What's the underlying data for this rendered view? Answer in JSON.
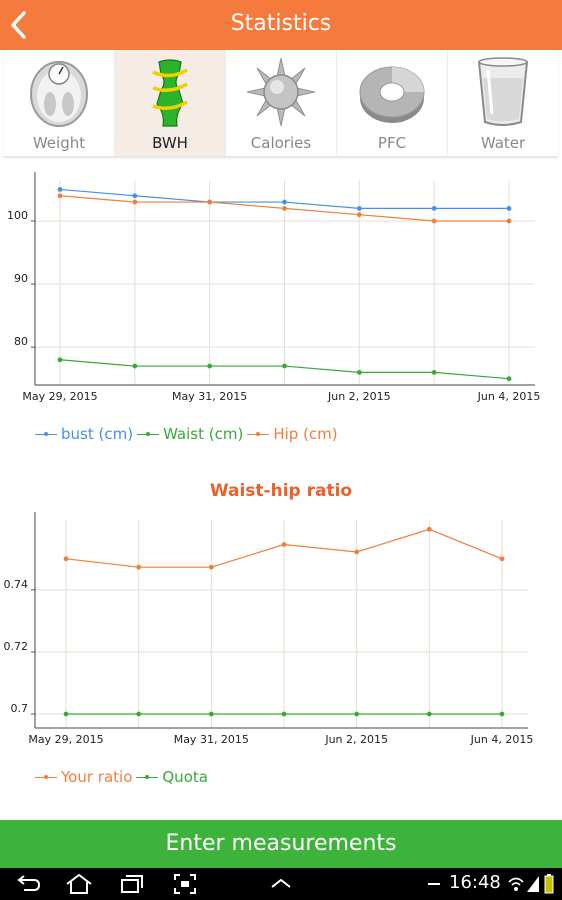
{
  "header": {
    "title": "Statistics"
  },
  "tabs": [
    {
      "label": "Weight",
      "icon": "scale-icon",
      "active": false
    },
    {
      "label": "BWH",
      "icon": "body-measure-icon",
      "active": true
    },
    {
      "label": "Calories",
      "icon": "sun-icon",
      "active": false
    },
    {
      "label": "PFC",
      "icon": "donut-icon",
      "active": false
    },
    {
      "label": "Water",
      "icon": "glass-icon",
      "active": false
    }
  ],
  "colors": {
    "accent": "#f47a3e",
    "bust": "#4a8fe0",
    "waist": "#3aa83a",
    "hip": "#f07f3c",
    "button": "#3eb33b"
  },
  "chart_data": [
    {
      "type": "line",
      "title": "",
      "x": [
        "May 29, 2015",
        "May 30, 2015",
        "May 31, 2015",
        "Jun 1, 2015",
        "Jun 2, 2015",
        "Jun 3, 2015",
        "Jun 4, 2015"
      ],
      "xticks": [
        "May 29, 2015",
        "May 31, 2015",
        "Jun 2, 2015",
        "Jun 4, 2015"
      ],
      "yticks": [
        "80",
        "90",
        "100"
      ],
      "ylim": [
        74,
        106.5
      ],
      "grid": true,
      "legend": "bottom-left",
      "series": [
        {
          "name": "bust (cm)",
          "values": [
            105,
            104,
            103,
            103,
            102,
            102,
            102
          ]
        },
        {
          "name": "Waist (cm)",
          "values": [
            78,
            77,
            77,
            77,
            76,
            76,
            75
          ]
        },
        {
          "name": "Hip (cm)",
          "values": [
            104,
            103,
            103,
            102,
            101,
            100,
            100
          ]
        }
      ]
    },
    {
      "type": "line",
      "title": "Waist-hip ratio",
      "x": [
        "May 29, 2015",
        "May 30, 2015",
        "May 31, 2015",
        "Jun 1, 2015",
        "Jun 2, 2015",
        "Jun 3, 2015",
        "Jun 4, 2015"
      ],
      "xticks": [
        "May 29, 2015",
        "May 31, 2015",
        "Jun 2, 2015",
        "Jun 4, 2015"
      ],
      "yticks": [
        "0.7",
        "0.72",
        "0.74"
      ],
      "ylim": [
        0.6955,
        0.7625
      ],
      "grid": true,
      "legend": "bottom-left",
      "series": [
        {
          "name": "Your ratio",
          "values": [
            0.75,
            0.7473,
            0.7473,
            0.7546,
            0.7522,
            0.7595,
            0.75
          ]
        },
        {
          "name": "Quota",
          "values": [
            0.7,
            0.7,
            0.7,
            0.7,
            0.7,
            0.7,
            0.7
          ]
        }
      ]
    }
  ],
  "button": {
    "label": "Enter measurements"
  },
  "status": {
    "time": "16:48"
  }
}
